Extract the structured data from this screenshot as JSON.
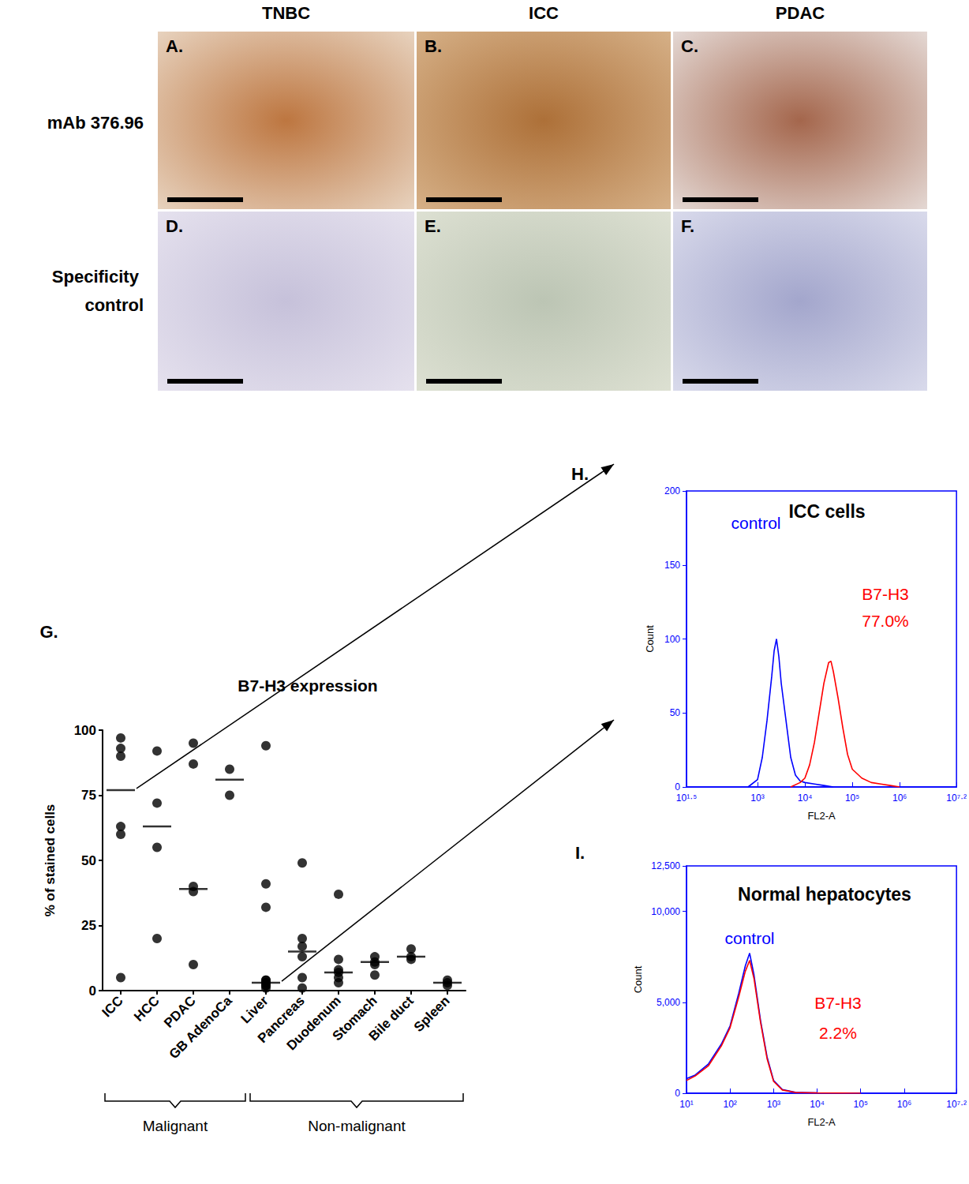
{
  "columns": [
    "TNBC",
    "ICC",
    "PDAC"
  ],
  "rows": [
    "mAb 376.96",
    "Specificity control"
  ],
  "panels": [
    "A.",
    "B.",
    "C.",
    "D.",
    "E.",
    "F."
  ],
  "chart_data": [
    {
      "type": "scatter",
      "panel": "G.",
      "title": "B7-H3 expression",
      "ylabel": "% of stained cells",
      "categories": [
        "ICC",
        "HCC",
        "PDAC",
        "GB AdenoCa",
        "Liver",
        "Pancreas",
        "Duodenum",
        "Stomach",
        "Bile duct",
        "Spleen"
      ],
      "values": [
        [
          97,
          93,
          90,
          63,
          60,
          5
        ],
        [
          92,
          72,
          55,
          20
        ],
        [
          95,
          87,
          40,
          38,
          10
        ],
        [
          85,
          75
        ],
        [
          94,
          41,
          32,
          4,
          3,
          2,
          2,
          1,
          4,
          3
        ],
        [
          49,
          20,
          17,
          13,
          5,
          1
        ],
        [
          37,
          12,
          8,
          7,
          5,
          3
        ],
        [
          13,
          11,
          10,
          6
        ],
        [
          16,
          13,
          12
        ],
        [
          4,
          3,
          2
        ]
      ],
      "means": [
        77,
        63,
        39,
        81,
        3,
        15,
        7,
        11,
        13,
        3
      ],
      "color": "#000000",
      "ylim": [
        0,
        100
      ],
      "yticks": [
        0,
        25,
        50,
        75,
        100
      ],
      "grid": false,
      "groups": [
        {
          "name": "Malignant",
          "from": "ICC",
          "to": "GB AdenoCa"
        },
        {
          "name": "Non-malignant",
          "from": "Liver",
          "to": "Spleen"
        }
      ]
    },
    {
      "type": "line",
      "panel": "H.",
      "title": "ICC cells",
      "xlabel": "FL2-A",
      "ylabel": "Count",
      "xlim": [
        1.5,
        7.2
      ],
      "xticks": [
        {
          "value": 1.5,
          "label": "10¹·⁵"
        },
        {
          "value": 3,
          "label": "10³"
        },
        {
          "value": 4,
          "label": "10⁴"
        },
        {
          "value": 5,
          "label": "10⁵"
        },
        {
          "value": 6,
          "label": "10⁶"
        },
        {
          "value": 7.2,
          "label": "10⁷·²"
        }
      ],
      "ylim": [
        0,
        200
      ],
      "yticks": [
        0,
        50,
        100,
        150,
        200
      ],
      "grid": false,
      "series": [
        {
          "name": "control",
          "color": "#0000ff",
          "x": [
            2.8,
            3.0,
            3.1,
            3.2,
            3.3,
            3.35,
            3.4,
            3.45,
            3.5,
            3.6,
            3.7,
            3.8,
            3.9,
            4.0,
            4.2,
            4.4,
            4.6
          ],
          "values": [
            0,
            5,
            20,
            45,
            75,
            92,
            100,
            88,
            70,
            45,
            20,
            8,
            4,
            3,
            2,
            1,
            0
          ]
        },
        {
          "name": "B7-H3",
          "label": "77.0%",
          "color": "#ff0000",
          "x": [
            3.7,
            3.9,
            4.0,
            4.1,
            4.2,
            4.3,
            4.4,
            4.5,
            4.55,
            4.6,
            4.7,
            4.8,
            4.9,
            5.0,
            5.2,
            5.4,
            5.6,
            5.8,
            6.0
          ],
          "values": [
            0,
            3,
            6,
            15,
            30,
            50,
            70,
            84,
            85,
            78,
            60,
            40,
            22,
            12,
            6,
            3,
            2,
            1,
            0
          ]
        }
      ]
    },
    {
      "type": "line",
      "panel": "I.",
      "title": "Normal hepatocytes",
      "xlabel": "FL2-A",
      "ylabel": "Count",
      "xlim": [
        1,
        7.2
      ],
      "xticks": [
        {
          "value": 1,
          "label": "10¹"
        },
        {
          "value": 2,
          "label": "10²"
        },
        {
          "value": 3,
          "label": "10³"
        },
        {
          "value": 4,
          "label": "10⁴"
        },
        {
          "value": 5,
          "label": "10⁵"
        },
        {
          "value": 6,
          "label": "10⁶"
        },
        {
          "value": 7.2,
          "label": "10⁷·²"
        }
      ],
      "ylim": [
        0,
        12500
      ],
      "yticks": [
        0,
        {
          "value": 5000,
          "label": "5,000"
        },
        {
          "value": 10000,
          "label": "10,000"
        },
        {
          "value": 12500,
          "label": "12,500"
        }
      ],
      "grid": false,
      "series": [
        {
          "name": "control",
          "color": "#0000ff",
          "x": [
            1.0,
            1.2,
            1.5,
            1.8,
            2.0,
            2.2,
            2.35,
            2.45,
            2.55,
            2.7,
            2.85,
            3.0,
            3.2,
            3.5,
            4.0,
            5.0
          ],
          "values": [
            800,
            1000,
            1600,
            2700,
            3700,
            5500,
            7000,
            7700,
            6500,
            4000,
            2000,
            700,
            200,
            50,
            20,
            0
          ]
        },
        {
          "name": "B7-H3",
          "label": "2.2%",
          "color": "#ff0000",
          "x": [
            1.0,
            1.2,
            1.5,
            1.8,
            2.0,
            2.2,
            2.35,
            2.45,
            2.55,
            2.7,
            2.85,
            3.0,
            3.2,
            3.5,
            4.0,
            5.0
          ],
          "values": [
            700,
            950,
            1500,
            2600,
            3600,
            5300,
            6700,
            7300,
            6300,
            3900,
            1900,
            650,
            180,
            40,
            15,
            0
          ]
        }
      ]
    }
  ]
}
